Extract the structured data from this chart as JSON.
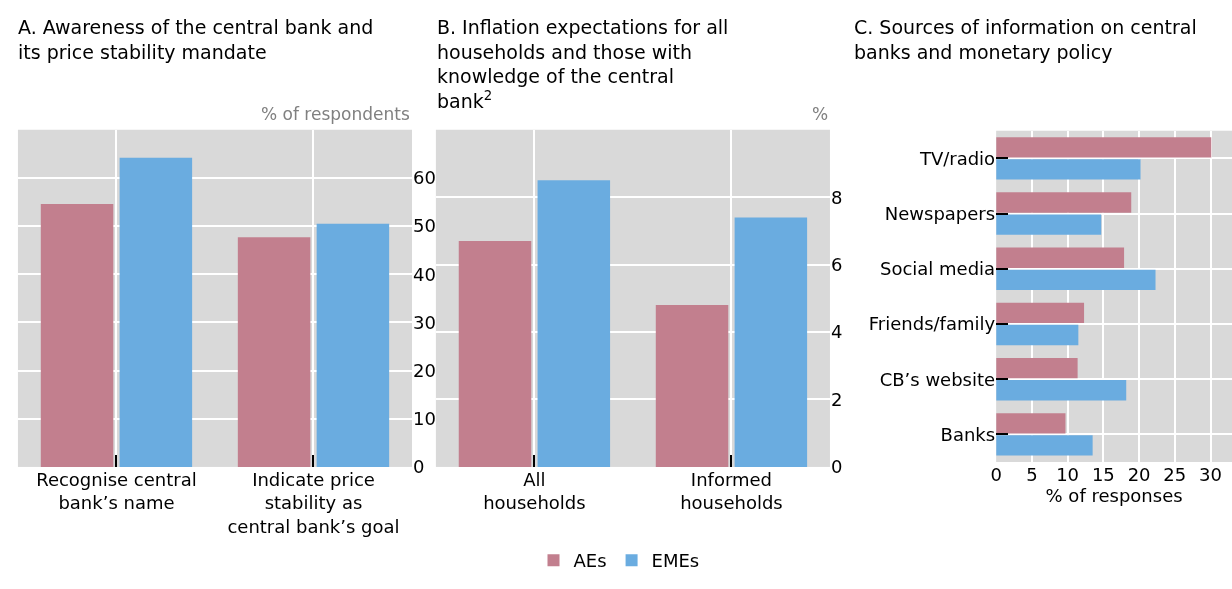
{
  "chart_data": [
    {
      "type": "bar",
      "title": "A. Awareness of the central bank and its price stability mandate",
      "ylabel": "% of respondents",
      "categories": [
        "Recognise central bank’s name",
        "Indicate price stability as central bank’s goal"
      ],
      "series": [
        {
          "name": "AEs",
          "color": "#c27f8e",
          "values": [
            54.6,
            47.7
          ]
        },
        {
          "name": "EMEs",
          "color": "#6aace0",
          "values": [
            64.2,
            50.5
          ]
        }
      ],
      "ylim": [
        0,
        70
      ],
      "yticks": [
        0,
        10,
        20,
        30,
        40,
        50,
        60
      ],
      "grid": true,
      "legend": "bottom"
    },
    {
      "type": "bar",
      "title": "B. Inflation expectations for all households and those with knowledge of the central bank$^{2}$",
      "ylabel": "%",
      "categories": [
        "All households",
        "Informed households"
      ],
      "series": [
        {
          "color": "#c27f8e",
          "values": [
            6.7,
            4.8
          ]
        },
        {
          "color": "#6aace0",
          "values": [
            8.5,
            7.4
          ]
        }
      ],
      "ylim": [
        0,
        10
      ],
      "yticks": [
        0,
        2,
        4,
        6,
        8
      ],
      "grid": true
    },
    {
      "type": "bar",
      "orientation": "horizontal",
      "title": "C. Sources of information on central banks and monetary policy",
      "xlabel": "% of responses",
      "categories": [
        "TV/radio",
        "Newspapers",
        "Social media",
        "Friends/family",
        "CB’s website",
        "Banks"
      ],
      "series": [
        {
          "color": "#c27f8e",
          "values": [
            30.1,
            18.9,
            17.9,
            12.3,
            11.4,
            9.7
          ]
        },
        {
          "color": "#6aace0",
          "values": [
            20.2,
            14.7,
            22.3,
            11.5,
            18.2,
            13.5
          ]
        }
      ],
      "xlim": [
        0,
        33
      ],
      "xticks": [
        0,
        5,
        10,
        15,
        20,
        25,
        30
      ],
      "grid": true
    }
  ]
}
